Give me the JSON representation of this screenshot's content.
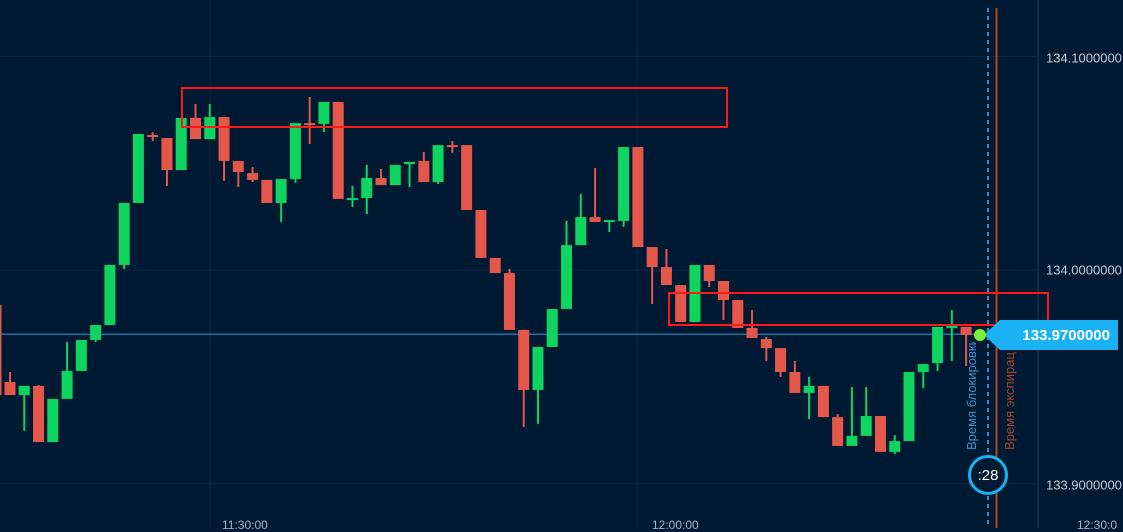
{
  "chart_data": {
    "type": "candlestick",
    "ylim": [
      133.88,
      134.125
    ],
    "y_ticks": [
      "134.1000000",
      "134.0000000",
      "133.9000000"
    ],
    "x_ticks": [
      "11:30:00",
      "12:00:00",
      "12:30:0"
    ],
    "grid": true,
    "current_price": "133.9700000",
    "current_price_value": 133.97,
    "timer": ":28",
    "lock_time_label": "Время блокировки",
    "expiration_label": "Время экспирации",
    "colors": {
      "up": "#0fd45f",
      "down": "#e5574a",
      "background": "#001a33",
      "price_line": "#1f6fa3",
      "zone": "#ff1a1a",
      "tag": "#1ab2f5"
    },
    "candles_ohlc": [
      [
        133.9837,
        133.986,
        133.9415,
        133.9415
      ],
      [
        133.9476,
        133.9523,
        133.9415,
        133.9415
      ],
      [
        133.9415,
        133.9458,
        133.9247,
        133.9458
      ],
      [
        133.9458,
        133.9462,
        133.9195,
        133.9195
      ],
      [
        133.9195,
        133.9397,
        133.9195,
        133.9397
      ],
      [
        133.9397,
        133.9663,
        133.9397,
        133.9528
      ],
      [
        133.9528,
        133.9673,
        133.9528,
        133.9673
      ],
      [
        133.9673,
        133.9743,
        133.9663,
        133.9743
      ],
      [
        133.9743,
        134.0024,
        133.9743,
        134.0024
      ],
      [
        134.0024,
        134.0314,
        134.0005,
        134.0314
      ],
      [
        134.0314,
        134.0637,
        134.0314,
        134.0637
      ],
      [
        134.0632,
        134.0646,
        134.0604,
        134.0623
      ],
      [
        134.0618,
        134.0618,
        134.0394,
        134.0468
      ],
      [
        134.0468,
        134.0712,
        134.0468,
        134.0712
      ],
      [
        134.0712,
        134.0777,
        134.0613,
        134.0613
      ],
      [
        134.0613,
        134.0777,
        134.0613,
        134.0716
      ],
      [
        134.0716,
        134.0716,
        134.0417,
        134.0511
      ],
      [
        134.0511,
        134.0511,
        134.0389,
        134.0459
      ],
      [
        134.0454,
        134.0482,
        134.0412,
        134.0422
      ],
      [
        134.0422,
        134.0422,
        134.0314,
        134.0314
      ],
      [
        134.0314,
        134.0426,
        134.0225,
        134.0426
      ],
      [
        134.0426,
        134.0688,
        134.0408,
        134.0688
      ],
      [
        134.0688,
        134.081,
        134.059,
        134.0679
      ],
      [
        134.0684,
        134.0787,
        134.0646,
        134.0787
      ],
      [
        134.0787,
        134.0787,
        134.0333,
        134.0333
      ],
      [
        134.0333,
        134.0394,
        134.0295,
        134.0337
      ],
      [
        134.0337,
        134.0492,
        134.0262,
        134.0431
      ],
      [
        134.0431,
        134.0473,
        134.0398,
        134.0398
      ],
      [
        134.0398,
        134.0492,
        134.0398,
        134.0492
      ],
      [
        134.0496,
        134.0506,
        134.0389,
        134.0506
      ],
      [
        134.0511,
        134.0553,
        134.0412,
        134.0412
      ],
      [
        134.0412,
        134.0585,
        134.0403,
        134.0585
      ],
      [
        134.0585,
        134.0604,
        134.0548,
        134.0576
      ],
      [
        134.0585,
        134.0585,
        134.0281,
        134.0281
      ],
      [
        134.0281,
        134.0281,
        134.0057,
        134.0057
      ],
      [
        134.0057,
        134.0057,
        133.9986,
        133.9986
      ],
      [
        133.9986,
        134.0005,
        133.972,
        133.972
      ],
      [
        133.972,
        133.972,
        133.9266,
        133.9439
      ],
      [
        133.9439,
        133.964,
        133.928,
        133.964
      ],
      [
        133.964,
        133.9818,
        133.964,
        133.9818
      ],
      [
        133.9818,
        134.023,
        133.9818,
        134.0117
      ],
      [
        134.0117,
        134.0356,
        134.0117,
        134.0248
      ],
      [
        134.0248,
        134.0478,
        134.0225,
        134.0225
      ],
      [
        134.023,
        134.0234,
        134.0178,
        134.0234
      ],
      [
        134.023,
        134.0576,
        134.0202,
        134.0576
      ],
      [
        134.0576,
        134.0576,
        134.0108,
        134.0108
      ],
      [
        134.0108,
        134.0108,
        133.9841,
        134.0014
      ],
      [
        134.0014,
        134.0099,
        133.993,
        133.993
      ],
      [
        133.993,
        133.993,
        133.9757,
        133.9757
      ],
      [
        133.9757,
        134.0024,
        133.9757,
        134.0024
      ],
      [
        134.0024,
        134.0024,
        133.9921,
        133.9949
      ],
      [
        133.9949,
        133.9949,
        133.9766,
        133.986
      ],
      [
        133.986,
        133.986,
        133.9729,
        133.9729
      ],
      [
        133.9729,
        133.9813,
        133.9682,
        133.9682
      ],
      [
        133.9677,
        133.9687,
        133.9575,
        133.9635
      ],
      [
        133.9635,
        133.9635,
        133.95,
        133.9523
      ],
      [
        133.9523,
        133.9575,
        133.9425,
        133.9425
      ],
      [
        133.9425,
        133.95,
        133.9303,
        133.9458
      ],
      [
        133.9458,
        133.9458,
        133.9312,
        133.9312
      ],
      [
        133.9312,
        133.9326,
        133.9177,
        133.9177
      ],
      [
        133.9177,
        133.9453,
        133.9177,
        133.9224
      ],
      [
        133.9224,
        133.9453,
        133.9224,
        133.9317
      ],
      [
        133.9317,
        133.9317,
        133.9149,
        133.9149
      ],
      [
        133.9149,
        133.9228,
        133.9139,
        133.92
      ],
      [
        133.92,
        133.9523,
        133.92,
        133.9523
      ],
      [
        133.9523,
        133.956,
        133.9448,
        133.956
      ],
      [
        133.9565,
        133.9734,
        133.9528,
        133.9734
      ],
      [
        133.9734,
        133.9813,
        133.9575,
        133.9738
      ],
      [
        133.9734,
        133.9734,
        133.9551,
        133.9696
      ]
    ]
  }
}
